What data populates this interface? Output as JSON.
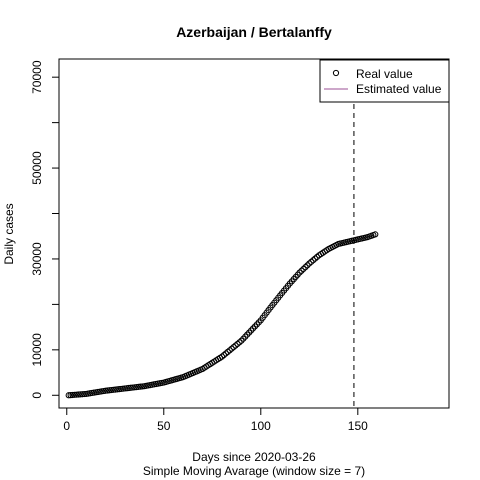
{
  "chart_data": {
    "type": "scatter",
    "title": "Azerbaijan / Bertalanffy",
    "xlabel": "Days since 2020-03-26",
    "xlabel_sub": "Simple Moving Avarage (window size = 7)",
    "ylabel": "Daily cases",
    "xlim": [
      -4,
      197
    ],
    "ylim": [
      -2800,
      74000
    ],
    "x_ticks": [
      0,
      50,
      100,
      150
    ],
    "y_ticks": [
      0,
      10000,
      20000,
      30000,
      40000,
      50000,
      60000,
      70000
    ],
    "y_tick_labels": [
      "0",
      "10000",
      "",
      "30000",
      "",
      "50000",
      "",
      "70000"
    ],
    "vline_x": 148,
    "legend": {
      "position": "top-right",
      "entries": [
        "Real value",
        "Estimated value"
      ],
      "estimated_color": "#9b4f96"
    },
    "anchors": {
      "x": [
        1,
        10,
        20,
        30,
        40,
        50,
        60,
        70,
        80,
        90,
        100,
        105,
        110,
        115,
        120,
        125,
        130,
        135,
        140,
        145,
        150,
        155,
        159
      ],
      "y": [
        0,
        300,
        1000,
        1500,
        2000,
        2800,
        4000,
        5800,
        8500,
        12000,
        16500,
        19300,
        22000,
        24600,
        27000,
        29000,
        30800,
        32200,
        33300,
        33800,
        34300,
        34800,
        35400
      ]
    }
  }
}
